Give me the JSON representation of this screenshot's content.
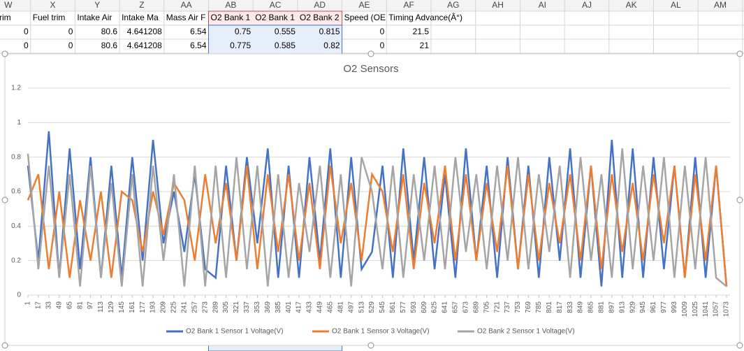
{
  "spreadsheet": {
    "columns": [
      "W",
      "X",
      "Y",
      "Z",
      "AA",
      "AB",
      "AC",
      "AD",
      "AE",
      "AF",
      "AG",
      "AH",
      "AI",
      "AJ",
      "AK",
      "AL",
      "AM"
    ],
    "rows": [
      [
        "el trim",
        "Fuel trim",
        "Intake Air",
        "Intake Ma",
        "Mass Air F",
        "O2 Bank 1",
        "O2 Bank 1",
        "O2 Bank 2",
        "Speed (OE",
        "Timing Advance(Â°)"
      ],
      [
        0,
        0,
        80.6,
        4.641208,
        6.54,
        0.75,
        0.555,
        0.815,
        0,
        21.5
      ],
      [
        0,
        0,
        80.6,
        4.641208,
        6.54,
        0.775,
        0.585,
        0.82,
        0,
        21
      ]
    ]
  },
  "chart_data": {
    "type": "line",
    "title": "O2 Sensors",
    "x": [
      1,
      17,
      33,
      49,
      65,
      81,
      97,
      113,
      129,
      145,
      161,
      177,
      193,
      209,
      225,
      241,
      257,
      273,
      289,
      305,
      321,
      337,
      353,
      369,
      385,
      401,
      417,
      433,
      449,
      465,
      481,
      497,
      513,
      529,
      545,
      561,
      577,
      593,
      609,
      625,
      641,
      657,
      673,
      689,
      705,
      721,
      737,
      753,
      769,
      785,
      801,
      817,
      833,
      849,
      865,
      881,
      897,
      913,
      929,
      945,
      961,
      977,
      993,
      1009,
      1025,
      1041,
      1057,
      1073
    ],
    "xlim": [
      1,
      1073
    ],
    "xticks": [
      1,
      17,
      33,
      49,
      65,
      81,
      97,
      113,
      129,
      145,
      161,
      177,
      193,
      209,
      225,
      241,
      257,
      273,
      289,
      305,
      321,
      337,
      353,
      369,
      385,
      401,
      417,
      433,
      449,
      465,
      481,
      497,
      513,
      529,
      545,
      561,
      577,
      593,
      609,
      625,
      641,
      657,
      673,
      689,
      705,
      721,
      737,
      753,
      769,
      785,
      801,
      817,
      833,
      849,
      865,
      881,
      897,
      913,
      929,
      945,
      961,
      977,
      993,
      1009,
      1025,
      1041,
      1057,
      1073
    ],
    "ylim": [
      0,
      1.2
    ],
    "yticks": [
      0,
      0.2,
      0.4,
      0.6,
      0.8,
      1,
      1.2
    ],
    "grid": true,
    "series": [
      {
        "name": "O2 Bank 1 Sensor 1 Voltage(V)",
        "color": "#4472c4",
        "values": [
          0.75,
          0.2,
          0.95,
          0.1,
          0.85,
          0.15,
          0.8,
          0.1,
          0.75,
          0.1,
          0.8,
          0.2,
          0.9,
          0.3,
          0.6,
          0.25,
          0.7,
          0.15,
          0.1,
          0.75,
          0.2,
          0.8,
          0.3,
          0.85,
          0.1,
          0.75,
          0.1,
          0.8,
          0.2,
          0.85,
          0.1,
          0.8,
          0.15,
          0.25,
          0.75,
          0.1,
          0.85,
          0.2,
          0.8,
          0.15,
          0.7,
          0.1,
          0.85,
          0.2,
          0.75,
          0.1,
          0.8,
          0.15,
          0.75,
          0.1,
          0.8,
          0.2,
          0.85,
          0.1,
          0.75,
          0.05,
          0.9,
          0.1,
          0.85,
          0.1,
          0.8,
          0.15,
          0.75,
          0.1,
          0.8,
          0.1,
          0.75,
          0.05
        ]
      },
      {
        "name": "O2 Bank 1 Sensor 3 Voltage(V)",
        "color": "#ed7d31",
        "values": [
          0.55,
          0.7,
          0.15,
          0.6,
          0.1,
          0.55,
          0.2,
          0.6,
          0.1,
          0.6,
          0.55,
          0.25,
          0.6,
          0.35,
          0.65,
          0.55,
          0.2,
          0.7,
          0.3,
          0.65,
          0.2,
          0.75,
          0.15,
          0.7,
          0.25,
          0.7,
          0.2,
          0.65,
          0.15,
          0.75,
          0.3,
          0.65,
          0.2,
          0.7,
          0.6,
          0.25,
          0.7,
          0.15,
          0.65,
          0.3,
          0.75,
          0.2,
          0.7,
          0.2,
          0.65,
          0.25,
          0.75,
          0.15,
          0.7,
          0.2,
          0.65,
          0.3,
          0.7,
          0.2,
          0.75,
          0.15,
          0.7,
          0.25,
          0.65,
          0.2,
          0.7,
          0.3,
          0.75,
          0.1,
          0.7,
          0.2,
          0.75,
          0.05
        ]
      },
      {
        "name": "O2 Bank 2 Sensor 1 Voltage(V)",
        "color": "#a5a5a5",
        "values": [
          0.82,
          0.15,
          0.75,
          0.1,
          0.7,
          0.05,
          0.75,
          0.1,
          0.65,
          0.05,
          0.7,
          0.05,
          0.75,
          0.2,
          0.7,
          0.05,
          0.75,
          0.05,
          0.75,
          0.1,
          0.8,
          0.15,
          0.75,
          0.05,
          0.7,
          0.1,
          0.65,
          0.25,
          0.75,
          0.1,
          0.7,
          0.05,
          0.8,
          0.6,
          0.15,
          0.75,
          0.1,
          0.7,
          0.2,
          0.75,
          0.15,
          0.8,
          0.25,
          0.7,
          0.15,
          0.75,
          0.2,
          0.8,
          0.15,
          0.7,
          0.25,
          0.75,
          0.1,
          0.8,
          0.2,
          0.7,
          0.1,
          0.85,
          0.15,
          0.75,
          0.2,
          0.8,
          0.1,
          0.75,
          0.15,
          0.8,
          0.1,
          0.05
        ]
      }
    ]
  }
}
